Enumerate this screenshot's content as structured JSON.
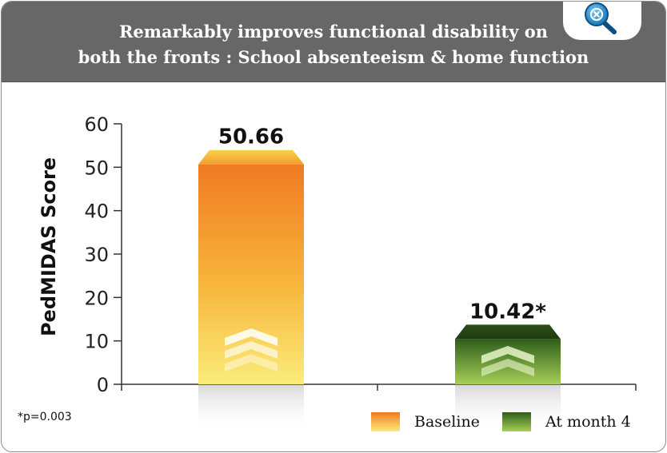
{
  "header": {
    "title_line1": "Remarkably improves functional disability on",
    "title_line2": "both the fronts : School absenteeism & home function"
  },
  "zoom_control": {
    "icon": "magnify-icon"
  },
  "footnote": "*p=0.003",
  "chart_data": {
    "type": "bar",
    "categories": [
      "Baseline",
      "At month 4"
    ],
    "values": [
      50.66,
      10.42
    ],
    "data_labels": [
      "50.66",
      "10.42*"
    ],
    "ylabel": "PedMIDAS Score",
    "ylim": [
      0,
      60
    ],
    "yticks": [
      0,
      10,
      20,
      30,
      40,
      50,
      60
    ],
    "grid": false,
    "legend": {
      "position": "bottom-right",
      "entries": [
        "Baseline",
        "At month 4"
      ]
    },
    "colors": {
      "Baseline": {
        "top": "#f07a22",
        "bottom": "#fbec7a"
      },
      "At month 4": {
        "top": "#2f5d1c",
        "bottom": "#a6d056"
      }
    }
  }
}
